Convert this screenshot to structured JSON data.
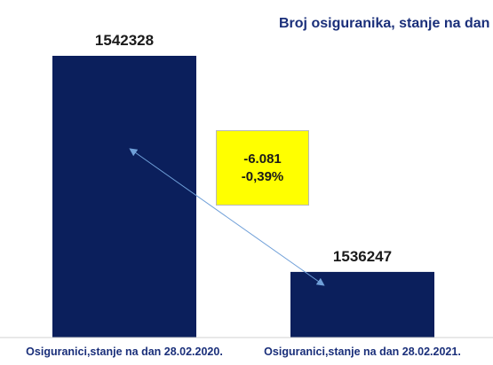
{
  "colors": {
    "bar": "#0b1f5c",
    "title": "#1a2f7a",
    "highlight_box": "#ffff00",
    "arrow": "#6f9fd8"
  },
  "chart_title": "Broj osiguranika, stanje na dan",
  "change_box": {
    "absolute": "-6.081",
    "percent": "-0,39%"
  },
  "chart_data": {
    "type": "bar",
    "title": "Broj osiguranika, stanje na dan",
    "categories": [
      "Osiguranici,stanje na dan 28.02.2020.",
      "Osiguranici,stanje na dan 28.02.2021."
    ],
    "values": [
      1542328,
      1536247
    ],
    "value_labels": [
      "1542328",
      "1536247"
    ],
    "xlabel": "",
    "ylabel": "",
    "grid": false,
    "legend": "none"
  }
}
